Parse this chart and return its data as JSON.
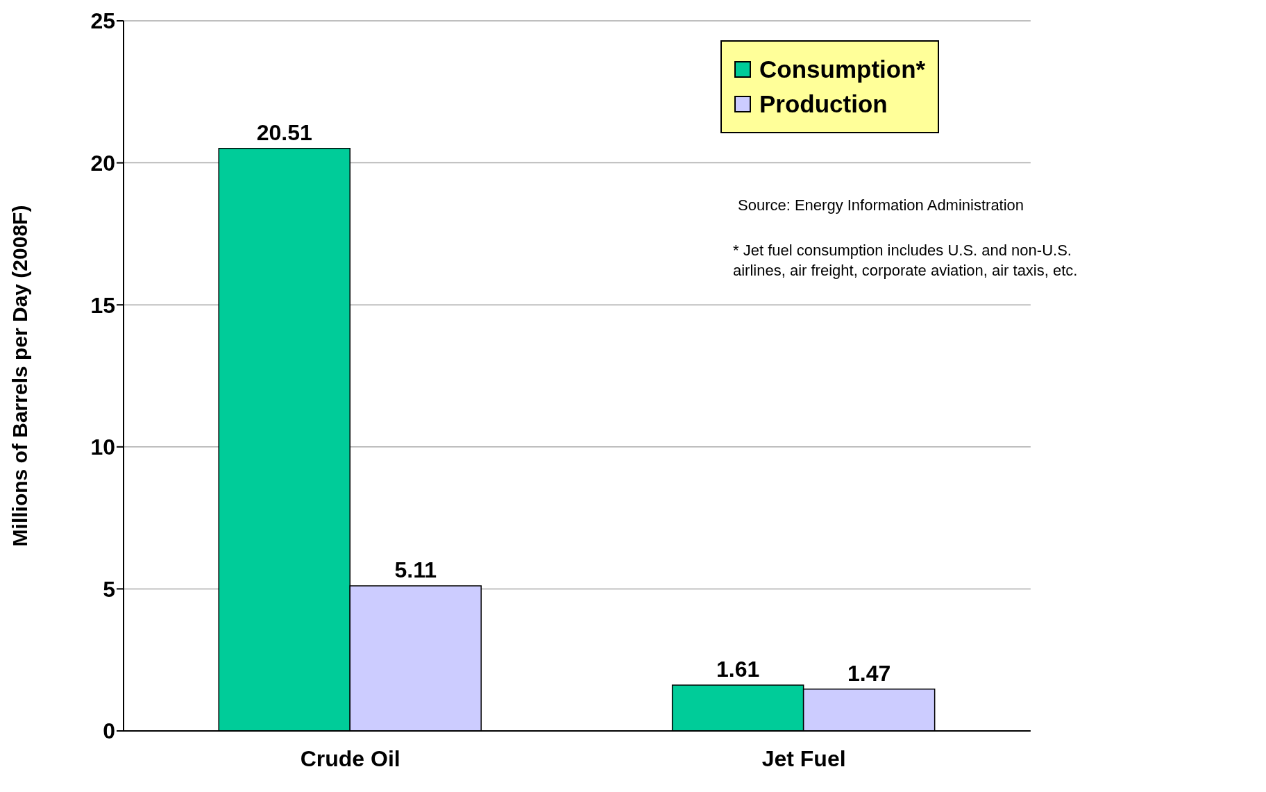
{
  "chart_data": {
    "type": "bar",
    "ylabel": "Millions of Barrels per Day (2008F)",
    "categories": [
      "Crude Oil",
      "Jet Fuel"
    ],
    "series": [
      {
        "name": "Consumption*",
        "color": "#00cc99",
        "values": [
          20.51,
          1.61
        ]
      },
      {
        "name": "Production",
        "color": "#ccccff",
        "values": [
          5.11,
          1.47
        ]
      }
    ],
    "ylim": [
      0,
      25
    ],
    "yticks": [
      0,
      5,
      10,
      15,
      20,
      25
    ],
    "grid": "y",
    "legend": "top right",
    "data_labels": true,
    "annotations": [
      "Source: Energy Information Administration",
      "* Jet fuel consumption includes U.S. and non-U.S. airlines, air freight, corporate aviation, air taxis, etc."
    ]
  }
}
